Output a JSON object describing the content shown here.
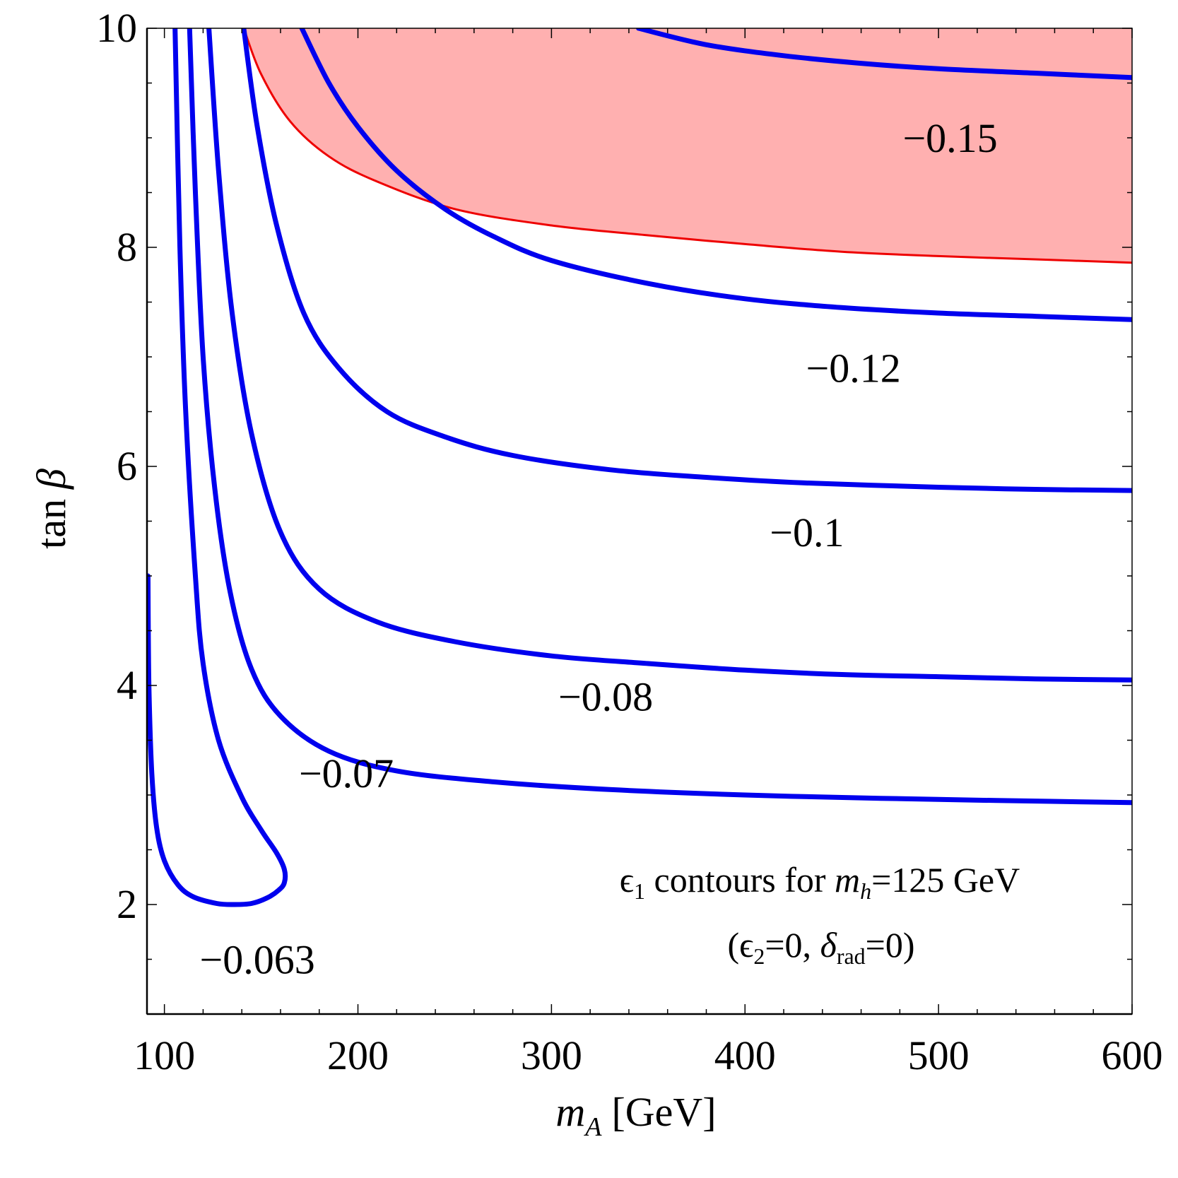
{
  "chart_data": {
    "type": "line",
    "xlabel": {
      "main": "m",
      "sub": "A",
      "unit": "[GeV]"
    },
    "ylabel": {
      "pre": "tan",
      "symbol": "β"
    },
    "xlim": [
      91,
      600
    ],
    "ylim": [
      1,
      10
    ],
    "xticks": [
      100,
      200,
      300,
      400,
      500,
      600
    ],
    "yticks": [
      2,
      4,
      6,
      8,
      10
    ],
    "colors": {
      "contour": "#0000ee",
      "region_fill": "#ffb0b0",
      "region_edge": "#ee0000"
    },
    "excluded_region": {
      "boundary": [
        [
          141,
          10
        ],
        [
          150,
          9.58
        ],
        [
          165,
          9.15
        ],
        [
          185,
          8.83
        ],
        [
          210,
          8.6
        ],
        [
          250,
          8.35
        ],
        [
          300,
          8.2
        ],
        [
          350,
          8.11
        ],
        [
          400,
          8.03
        ],
        [
          450,
          7.96
        ],
        [
          500,
          7.92
        ],
        [
          550,
          7.89
        ],
        [
          600,
          7.86
        ]
      ]
    },
    "series": [
      {
        "name": "-0.063",
        "label": "−0.063",
        "points": [
          [
            91.5,
            5.0
          ],
          [
            92,
            4.0
          ],
          [
            93.5,
            3.2
          ],
          [
            96,
            2.7
          ],
          [
            100,
            2.4
          ],
          [
            107,
            2.18
          ],
          [
            115,
            2.07
          ],
          [
            127,
            2.01
          ],
          [
            136,
            2.0
          ],
          [
            145,
            2.01
          ],
          [
            153,
            2.06
          ],
          [
            159,
            2.13
          ],
          [
            162,
            2.2
          ],
          [
            162,
            2.32
          ],
          [
            158,
            2.47
          ],
          [
            150,
            2.68
          ],
          [
            140,
            2.98
          ],
          [
            128,
            3.5
          ],
          [
            120,
            4.2
          ],
          [
            116,
            5.0
          ],
          [
            111,
            6.5
          ],
          [
            108,
            8.0
          ],
          [
            105.5,
            10.0
          ]
        ]
      },
      {
        "name": "-0.07",
        "label": "−0.07",
        "points": [
          [
            113,
            10
          ],
          [
            116,
            8.5
          ],
          [
            120,
            7.0
          ],
          [
            126,
            5.8
          ],
          [
            134,
            4.85
          ],
          [
            145,
            4.15
          ],
          [
            160,
            3.72
          ],
          [
            185,
            3.4
          ],
          [
            220,
            3.22
          ],
          [
            270,
            3.12
          ],
          [
            330,
            3.05
          ],
          [
            400,
            3.0
          ],
          [
            470,
            2.97
          ],
          [
            530,
            2.95
          ],
          [
            600,
            2.93
          ]
        ]
      },
      {
        "name": "-0.08",
        "label": "−0.08",
        "points": [
          [
            123,
            10
          ],
          [
            128,
            8.7
          ],
          [
            135,
            7.4
          ],
          [
            145,
            6.3
          ],
          [
            160,
            5.4
          ],
          [
            180,
            4.88
          ],
          [
            210,
            4.58
          ],
          [
            250,
            4.4
          ],
          [
            300,
            4.27
          ],
          [
            350,
            4.2
          ],
          [
            400,
            4.14
          ],
          [
            450,
            4.1
          ],
          [
            500,
            4.08
          ],
          [
            550,
            4.06
          ],
          [
            600,
            4.05
          ]
        ]
      },
      {
        "name": "-0.1",
        "label": "−0.1",
        "points": [
          [
            141,
            10
          ],
          [
            148,
            9.1
          ],
          [
            158,
            8.2
          ],
          [
            172,
            7.4
          ],
          [
            190,
            6.9
          ],
          [
            215,
            6.5
          ],
          [
            245,
            6.27
          ],
          [
            280,
            6.1
          ],
          [
            330,
            5.97
          ],
          [
            380,
            5.9
          ],
          [
            430,
            5.85
          ],
          [
            500,
            5.81
          ],
          [
            550,
            5.79
          ],
          [
            600,
            5.78
          ]
        ]
      },
      {
        "name": "-0.12",
        "label": "−0.12",
        "points": [
          [
            171,
            10
          ],
          [
            185,
            9.5
          ],
          [
            200,
            9.1
          ],
          [
            220,
            8.7
          ],
          [
            245,
            8.35
          ],
          [
            270,
            8.1
          ],
          [
            300,
            7.88
          ],
          [
            350,
            7.67
          ],
          [
            400,
            7.53
          ],
          [
            450,
            7.45
          ],
          [
            500,
            7.4
          ],
          [
            550,
            7.37
          ],
          [
            600,
            7.34
          ]
        ]
      },
      {
        "name": "-0.15",
        "label": "−0.15",
        "points": [
          [
            345,
            10
          ],
          [
            380,
            9.85
          ],
          [
            420,
            9.75
          ],
          [
            460,
            9.68
          ],
          [
            500,
            9.63
          ],
          [
            550,
            9.59
          ],
          [
            600,
            9.55
          ]
        ]
      }
    ],
    "contour_label_positions": [
      {
        "series": "-0.063",
        "x": 148,
        "y": 1.5
      },
      {
        "series": "-0.07",
        "x": 194,
        "y": 3.2
      },
      {
        "series": "-0.08",
        "x": 328,
        "y": 3.9
      },
      {
        "series": "-0.1",
        "x": 432,
        "y": 5.4
      },
      {
        "series": "-0.12",
        "x": 456,
        "y": 6.9
      },
      {
        "series": "-0.15",
        "x": 506,
        "y": 9.0
      }
    ],
    "annotation": {
      "line1": {
        "eps": "ϵ",
        "eps_sub": "1",
        "text": " contours for ",
        "m": "m",
        "m_sub": "h",
        "value": "=125 GeV"
      },
      "line2": {
        "open": "(",
        "eps": "ϵ",
        "eps_sub": "2",
        "eq1": "=0, ",
        "delta": "δ",
        "delta_sub": "rad",
        "eq2": "=0)"
      }
    }
  }
}
